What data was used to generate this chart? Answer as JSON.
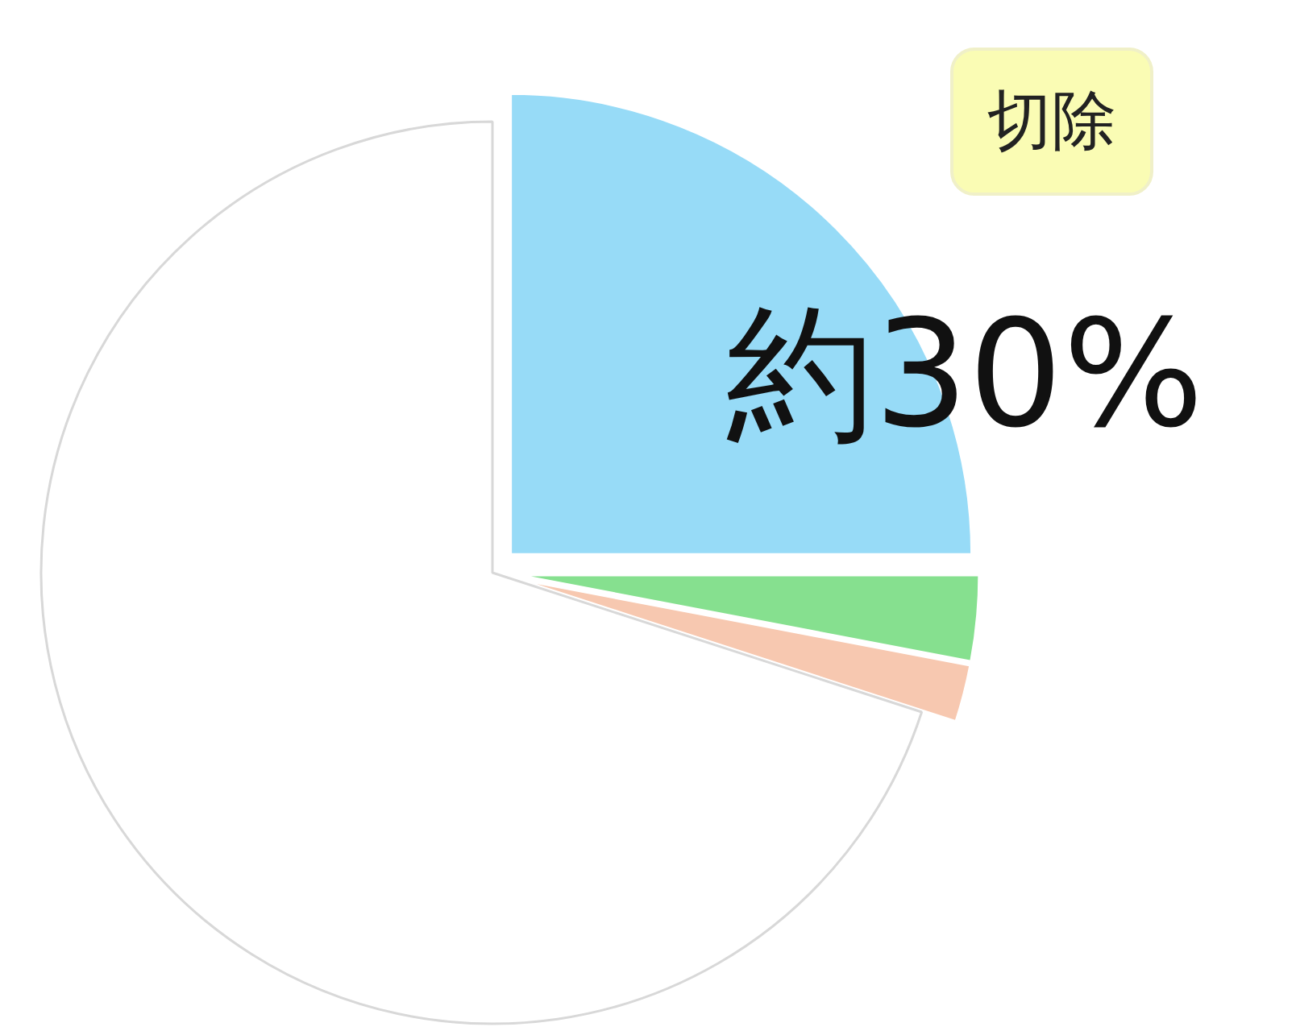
{
  "chart_data": {
    "type": "pie",
    "categories": [
      null,
      null,
      null,
      null
    ],
    "values": [
      25,
      3,
      2,
      70
    ],
    "colors": [
      "#97dbf7",
      "#86e08f",
      "#f7c8b0",
      "#ffffff"
    ],
    "annotations": [
      "切除",
      "約30%"
    ]
  }
}
